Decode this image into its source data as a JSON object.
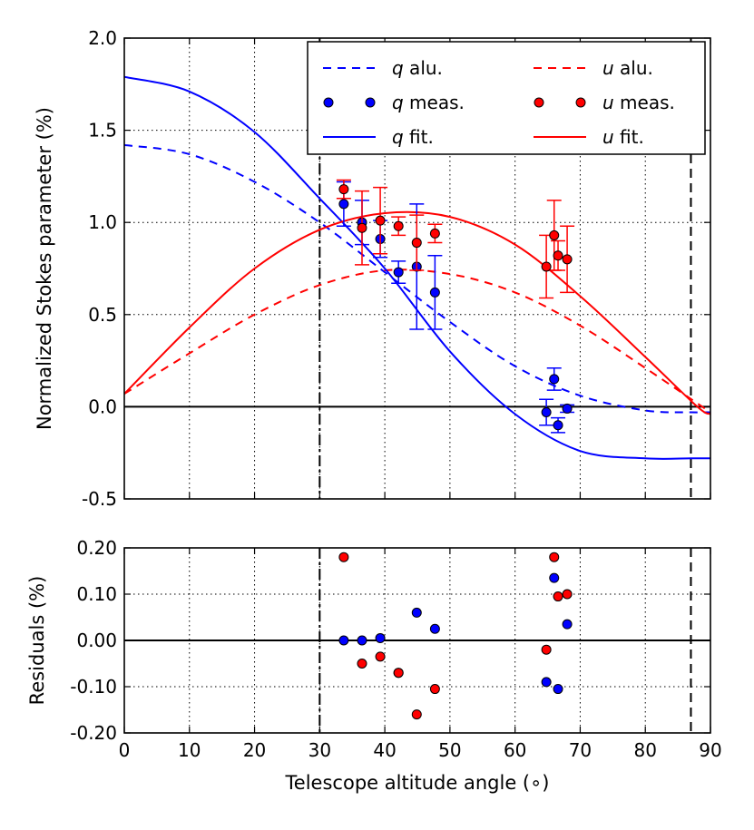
{
  "chart_data": [
    {
      "type": "line",
      "panel": "main",
      "xlabel": "",
      "ylabel": "Normalized Stokes parameter (%)",
      "xlim": [
        0,
        90
      ],
      "ylim": [
        -0.5,
        2.0
      ],
      "yticks": [
        -0.5,
        0.0,
        0.5,
        1.0,
        1.5,
        2.0
      ],
      "ytick_labels": [
        "-0.5",
        "0.0",
        "0.5",
        "1.0",
        "1.5",
        "2.0"
      ],
      "grid": true,
      "vlines": [
        30,
        87
      ],
      "hline": 0,
      "legend": {
        "placement": "top-right",
        "entries": [
          {
            "sym": "q",
            "text": " alu.",
            "color": "#0000ff",
            "style": "dashed"
          },
          {
            "sym": "u",
            "text": " alu.",
            "color": "#ff0000",
            "style": "dashed"
          },
          {
            "sym": "q",
            "text": " meas.",
            "color": "#0000ff",
            "style": "marker"
          },
          {
            "sym": "u",
            "text": " meas.",
            "color": "#ff0000",
            "style": "marker"
          },
          {
            "sym": "q",
            "text": " fit.",
            "color": "#0000ff",
            "style": "solid"
          },
          {
            "sym": "u",
            "text": " fit.",
            "color": "#ff0000",
            "style": "solid"
          }
        ]
      },
      "series": [
        {
          "name": "q alu.",
          "color": "#0000ff",
          "style": "dashed",
          "x": [
            0,
            10,
            20,
            30,
            40,
            50,
            60,
            70,
            80,
            87,
            90
          ],
          "y": [
            1.42,
            1.37,
            1.22,
            1.0,
            0.73,
            0.46,
            0.22,
            0.06,
            -0.02,
            -0.03,
            -0.03
          ]
        },
        {
          "name": "u alu.",
          "color": "#ff0000",
          "style": "dashed",
          "x": [
            0,
            10,
            20,
            30,
            40,
            50,
            60,
            70,
            80,
            90
          ],
          "y": [
            0.07,
            0.29,
            0.5,
            0.66,
            0.74,
            0.72,
            0.62,
            0.44,
            0.21,
            -0.03
          ]
        },
        {
          "name": "q fit.",
          "color": "#0000ff",
          "style": "solid",
          "x": [
            0,
            10,
            20,
            30,
            40,
            50,
            60,
            70,
            80,
            87,
            90
          ],
          "y": [
            1.79,
            1.71,
            1.49,
            1.13,
            0.75,
            0.3,
            -0.04,
            -0.24,
            -0.28,
            -0.28,
            -0.28
          ]
        },
        {
          "name": "u fit.",
          "color": "#ff0000",
          "style": "solid",
          "x": [
            0,
            10,
            20,
            30,
            40,
            50,
            60,
            70,
            80,
            88,
            90
          ],
          "y": [
            0.07,
            0.43,
            0.75,
            0.96,
            1.05,
            1.03,
            0.88,
            0.6,
            0.27,
            0.0,
            -0.04
          ]
        },
        {
          "name": "q meas.",
          "color": "#0000ff",
          "style": "errorbar",
          "x": [
            33.7,
            36.5,
            39.3,
            42.1,
            44.9,
            47.7,
            64.8,
            66.0,
            66.6,
            68.0
          ],
          "y": [
            1.1,
            1.0,
            0.91,
            0.73,
            0.76,
            0.62,
            -0.03,
            0.15,
            -0.1,
            -0.01
          ],
          "err": [
            0.12,
            0.12,
            0.1,
            0.06,
            0.34,
            0.2,
            0.07,
            0.06,
            0.04,
            0.02
          ]
        },
        {
          "name": "u meas.",
          "color": "#ff0000",
          "style": "errorbar",
          "x": [
            33.7,
            36.5,
            39.3,
            42.1,
            44.9,
            47.7,
            64.8,
            66.0,
            66.6,
            68.0
          ],
          "y": [
            1.18,
            0.97,
            1.01,
            0.98,
            0.89,
            0.94,
            0.76,
            0.93,
            0.82,
            0.8
          ],
          "err": [
            0.05,
            0.2,
            0.18,
            0.05,
            0.15,
            0.05,
            0.17,
            0.19,
            0.08,
            0.18
          ]
        }
      ]
    },
    {
      "type": "scatter",
      "panel": "residuals",
      "xlabel": "Telescope altitude angle (∘)",
      "ylabel": "Residuals (%)",
      "xlim": [
        0,
        90
      ],
      "ylim": [
        -0.2,
        0.2
      ],
      "xticks": [
        0,
        10,
        20,
        30,
        40,
        50,
        60,
        70,
        80,
        90
      ],
      "xtick_labels": [
        "0",
        "10",
        "20",
        "30",
        "40",
        "50",
        "60",
        "70",
        "80",
        "90"
      ],
      "yticks": [
        -0.2,
        -0.1,
        0.0,
        0.1,
        0.2
      ],
      "ytick_labels": [
        "-0.20",
        "-0.10",
        "0.00",
        "0.10",
        "0.20"
      ],
      "grid": true,
      "vlines": [
        30,
        87
      ],
      "hline": 0,
      "series": [
        {
          "name": "q residuals",
          "color": "#0000ff",
          "x": [
            33.7,
            36.5,
            39.3,
            42.1,
            44.9,
            47.7,
            64.8,
            66.0,
            66.6,
            68.0
          ],
          "y": [
            0.0,
            0.0,
            0.005,
            -0.07,
            0.06,
            0.025,
            -0.09,
            0.135,
            -0.105,
            0.035
          ]
        },
        {
          "name": "u residuals",
          "color": "#ff0000",
          "x": [
            33.7,
            36.5,
            39.3,
            42.1,
            44.9,
            47.7,
            64.8,
            66.0,
            66.6,
            68.0
          ],
          "y": [
            0.18,
            -0.05,
            -0.035,
            -0.07,
            -0.16,
            -0.105,
            -0.02,
            0.18,
            0.095,
            0.1
          ]
        }
      ]
    }
  ]
}
